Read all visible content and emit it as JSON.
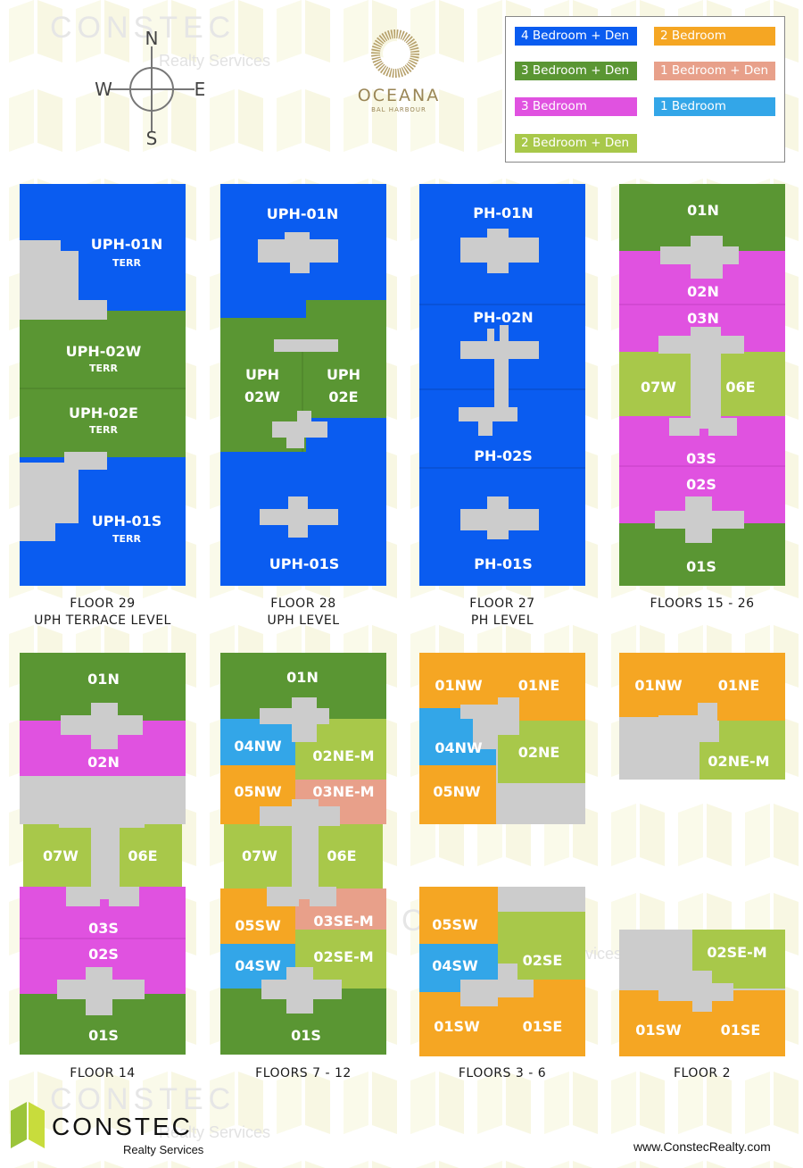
{
  "branding": {
    "watermark_word": "CONSTEC",
    "watermark_sub": "Realty Services",
    "logo_word": "CONSTEC",
    "logo_sub": "Realty Services",
    "website": "www.ConstecRealty.com",
    "building_name": "OCEANA",
    "building_sub": "BAL HARBOUR"
  },
  "compass": {
    "n": "N",
    "s": "S",
    "e": "E",
    "w": "W"
  },
  "colors": {
    "four_bed_den": "#0a5cf0",
    "three_bed_den": "#5a9633",
    "three_bed": "#e052e0",
    "two_bed_den": "#a8c84a",
    "two_bed": "#f5a623",
    "one_bed_den": "#e8a08a",
    "one_bed": "#33a6e8",
    "common": "#cccccc"
  },
  "legend": [
    {
      "label": "4 Bedroom + Den",
      "color": "#0a5cf0"
    },
    {
      "label": "2 Bedroom",
      "color": "#f5a623"
    },
    {
      "label": "3 Bedroom + Den",
      "color": "#5a9633"
    },
    {
      "label": "1 Bedroom + Den",
      "color": "#e8a08a"
    },
    {
      "label": "3 Bedroom",
      "color": "#e052e0"
    },
    {
      "label": "1 Bedroom",
      "color": "#33a6e8"
    },
    {
      "label": "2 Bedroom + Den",
      "color": "#a8c84a"
    }
  ],
  "plans": {
    "f29": {
      "caption1": "FLOOR 29",
      "caption2": "UPH TERRACE LEVEL",
      "units": {
        "a": "UPH-01N",
        "a2": "TERR",
        "b": "UPH-02W",
        "b2": "TERR",
        "c": "UPH-02E",
        "c2": "TERR",
        "d": "UPH-01S",
        "d2": "TERR"
      }
    },
    "f28": {
      "caption1": "FLOOR 28",
      "caption2": "UPH LEVEL",
      "units": {
        "a": "UPH-01N",
        "b1": "UPH",
        "b2": "02W",
        "c1": "UPH",
        "c2": "02E",
        "d": "UPH-01S"
      }
    },
    "f27": {
      "caption1": "FLOOR 27",
      "caption2": "PH LEVEL",
      "units": {
        "a": "PH-01N",
        "b": "PH-02N",
        "c": "PH-02S",
        "d": "PH-01S"
      }
    },
    "f1526": {
      "caption1": "FLOORS 15 - 26",
      "units": {
        "a": "01N",
        "b": "02N",
        "c": "03N",
        "d": "07W",
        "e": "06E",
        "f": "03S",
        "g": "02S",
        "h": "01S"
      }
    },
    "f14": {
      "caption1": "FLOOR 14",
      "units": {
        "a": "01N",
        "b": "02N",
        "c": "07W",
        "d": "06E",
        "e": "03S",
        "f": "02S",
        "g": "01S"
      }
    },
    "f712": {
      "caption1": "FLOORS 7 - 12",
      "units": {
        "a": "01N",
        "b": "04NW",
        "c": "02NE-M",
        "d": "05NW",
        "e": "03NE-M",
        "f": "07W",
        "g": "06E",
        "h": "05SW",
        "i": "03SE-M",
        "j": "04SW",
        "k": "02SE-M",
        "l": "01S"
      }
    },
    "f36": {
      "caption1": "FLOORS 3 - 6",
      "units": {
        "a": "01NW",
        "b": "01NE",
        "c": "04NW",
        "d": "02NE",
        "e": "05NW",
        "f": "05SW",
        "g": "02SE",
        "h": "04SW",
        "i": "01SW",
        "j": "01SE"
      }
    },
    "f2": {
      "caption1": "FLOOR 2",
      "units": {
        "a": "01NW",
        "b": "01NE",
        "c": "02NE-M",
        "d": "02SE-M",
        "e": "01SW",
        "f": "01SE"
      }
    }
  }
}
